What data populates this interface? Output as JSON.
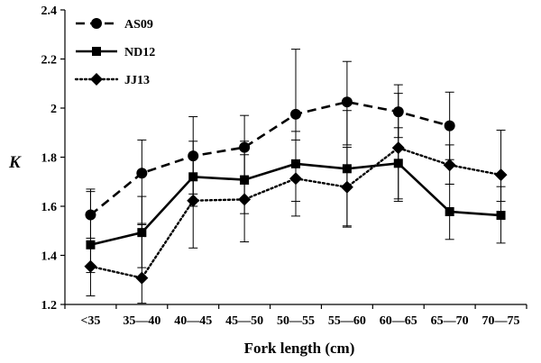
{
  "chart_data": {
    "type": "line",
    "xlabel": "Fork length (cm)",
    "ylabel": "K",
    "ylim": [
      1.2,
      2.4
    ],
    "yticks": [
      "1.2",
      "1.4",
      "1.6",
      "1.8",
      "2",
      "2.2",
      "2.4"
    ],
    "categories": [
      "<35",
      "35—40",
      "40—45",
      "45—50",
      "50—55",
      "55—60",
      "60—65",
      "65—70",
      "70—75"
    ],
    "legend_position": "top-left",
    "series": [
      {
        "name": "AS09",
        "line": "dashed",
        "marker": "circle",
        "values": [
          1.565,
          1.735,
          1.805,
          1.84,
          1.975,
          2.025,
          1.985,
          1.928,
          null
        ],
        "err_low": [
          1.47,
          1.53,
          1.65,
          1.69,
          1.71,
          1.85,
          1.88,
          1.79,
          null
        ],
        "err_high": [
          1.67,
          1.87,
          1.965,
          1.97,
          2.24,
          2.19,
          2.095,
          2.065,
          null
        ]
      },
      {
        "name": "ND12",
        "line": "solid",
        "marker": "square",
        "values": [
          1.443,
          1.493,
          1.72,
          1.708,
          1.773,
          1.753,
          1.775,
          1.578,
          1.563
        ],
        "err_low": [
          1.33,
          1.35,
          1.6,
          1.57,
          1.62,
          1.52,
          1.63,
          1.465,
          1.45
        ],
        "err_high": [
          1.66,
          1.64,
          1.865,
          1.865,
          1.905,
          1.99,
          1.92,
          1.69,
          1.68
        ]
      },
      {
        "name": "JJ13",
        "line": "dotted",
        "marker": "diamond",
        "values": [
          1.355,
          1.308,
          1.623,
          1.628,
          1.713,
          1.678,
          1.838,
          1.768,
          1.728
        ],
        "err_low": [
          1.235,
          1.205,
          1.43,
          1.455,
          1.56,
          1.515,
          1.62,
          1.69,
          1.62
        ],
        "err_high": [
          1.455,
          1.525,
          1.81,
          1.81,
          1.87,
          1.84,
          2.06,
          1.85,
          1.91
        ]
      }
    ]
  }
}
